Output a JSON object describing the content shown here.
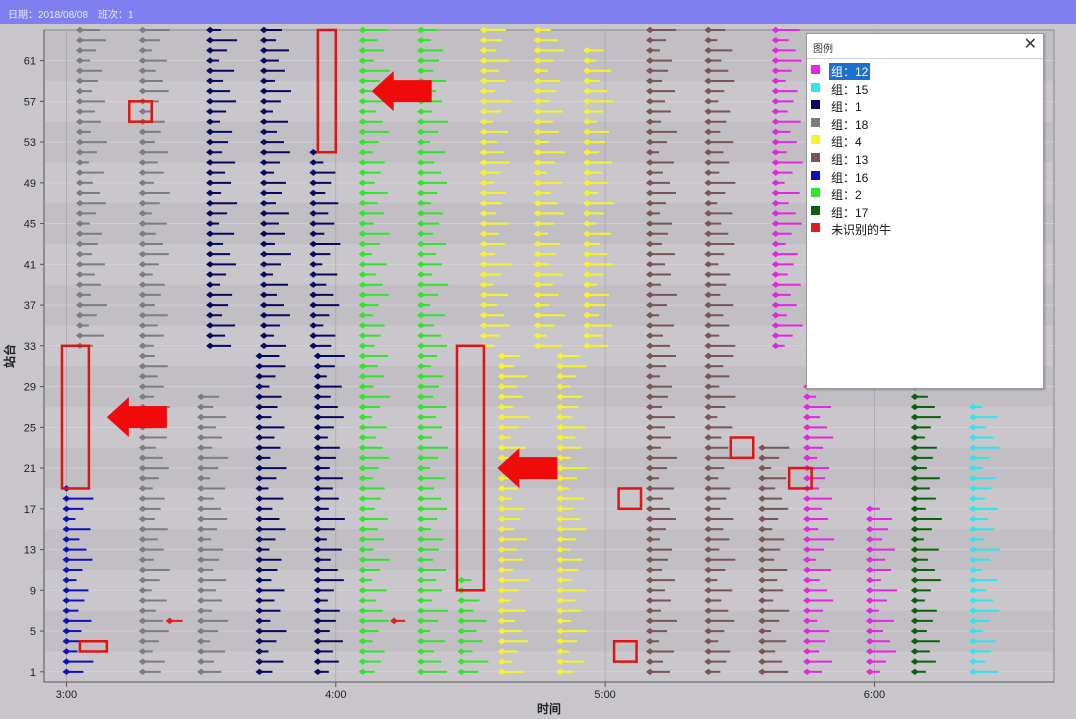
{
  "header": {
    "date_label": "日期：2018/08/08",
    "shift_label": "班次：1"
  },
  "legend": {
    "title": "图例",
    "close_icon": "close-icon",
    "selected_index": 0,
    "items": [
      {
        "label": "组：12",
        "color": "#e426e0"
      },
      {
        "label": "组：15",
        "color": "#33e5e8"
      },
      {
        "label": "组：1",
        "color": "#08085f"
      },
      {
        "label": "组：18",
        "color": "#7d7d7d"
      },
      {
        "label": "组：4",
        "color": "#f4f42a"
      },
      {
        "label": "组：13",
        "color": "#765656"
      },
      {
        "label": "组：16",
        "color": "#1010b8"
      },
      {
        "label": "组：2",
        "color": "#34e230"
      },
      {
        "label": "组：17",
        "color": "#0d6010"
      },
      {
        "label": "未识别的牛",
        "color": "#e21b1b"
      }
    ]
  },
  "chart_data": {
    "type": "scatter",
    "xlabel": "时间",
    "ylabel": "站台",
    "x_ticks": [
      "3:00",
      "4:00",
      "5:00",
      "6:00"
    ],
    "y_ticks": [
      1,
      5,
      9,
      13,
      17,
      21,
      25,
      29,
      33,
      37,
      41,
      45,
      49,
      53,
      57,
      61
    ],
    "xlim": [
      "2:55",
      "6:40"
    ],
    "ylim": [
      0,
      64
    ],
    "grid": true,
    "legend_position": "top-right",
    "series": [
      {
        "name": "组：18",
        "color": "#7d7d7d",
        "stacks": [
          {
            "start": "3:03",
            "stations": [
              33,
              64
            ]
          },
          {
            "start": "3:17",
            "stations": [
              33,
              64
            ]
          },
          {
            "start": "3:17",
            "stations": [
              1,
              32
            ]
          },
          {
            "start": "3:30",
            "stations": [
              1,
              28
            ]
          }
        ]
      },
      {
        "name": "组：16",
        "color": "#1010b8",
        "stacks": [
          {
            "start": "3:00",
            "stations": [
              1,
              19
            ]
          }
        ]
      },
      {
        "name": "组：1",
        "color": "#08085f",
        "stacks": [
          {
            "start": "3:32",
            "stations": [
              33,
              64
            ]
          },
          {
            "start": "3:44",
            "stations": [
              33,
              64
            ]
          },
          {
            "start": "3:43",
            "stations": [
              1,
              32
            ]
          },
          {
            "start": "3:56",
            "stations": [
              1,
              32
            ]
          },
          {
            "start": "3:55",
            "stations": [
              33,
              52
            ]
          }
        ]
      },
      {
        "name": "组：2",
        "color": "#34e230",
        "stacks": [
          {
            "start": "4:06",
            "stations": [
              1,
              64
            ]
          },
          {
            "start": "4:19",
            "stations": [
              1,
              64
            ]
          },
          {
            "start": "4:28",
            "stations": [
              1,
              10
            ]
          }
        ]
      },
      {
        "name": "组：4",
        "color": "#f4f42a",
        "stacks": [
          {
            "start": "4:33",
            "stations": [
              33,
              64
            ]
          },
          {
            "start": "4:45",
            "stations": [
              33,
              64
            ]
          },
          {
            "start": "4:56",
            "stations": [
              33,
              62
            ]
          },
          {
            "start": "4:37",
            "stations": [
              1,
              32
            ]
          },
          {
            "start": "4:50",
            "stations": [
              1,
              32
            ]
          }
        ]
      },
      {
        "name": "组：13",
        "color": "#765656",
        "stacks": [
          {
            "start": "5:10",
            "stations": [
              1,
              64
            ]
          },
          {
            "start": "5:23",
            "stations": [
              32,
              64
            ]
          },
          {
            "start": "5:23",
            "stations": [
              1,
              32
            ]
          },
          {
            "start": "5:35",
            "stations": [
              1,
              23
            ]
          }
        ]
      },
      {
        "name": "组：12",
        "color": "#e426e0",
        "stacks": [
          {
            "start": "5:38",
            "stations": [
              33,
              64
            ]
          },
          {
            "start": "5:45",
            "stations": [
              1,
              29
            ]
          },
          {
            "start": "5:59",
            "stations": [
              1,
              17
            ]
          }
        ]
      },
      {
        "name": "组：17",
        "color": "#0d6010",
        "stacks": [
          {
            "start": "6:09",
            "stations": [
              1,
              29
            ]
          }
        ]
      },
      {
        "name": "组：15",
        "color": "#33e5e8",
        "stacks": [
          {
            "start": "6:22",
            "stations": [
              1,
              27
            ]
          }
        ]
      },
      {
        "name": "未识别的牛",
        "color": "#e21b1b",
        "stacks": [
          {
            "start": "3:23",
            "stations": [
              6,
              6
            ]
          },
          {
            "start": "4:13",
            "stations": [
              6,
              6
            ]
          }
        ]
      }
    ],
    "annotations": [
      {
        "type": "box",
        "x": [
          "3:56",
          "4:00"
        ],
        "y": [
          52,
          64
        ]
      },
      {
        "type": "arrow-left",
        "x": "4:08",
        "y": 58
      },
      {
        "type": "box",
        "x": [
          "3:14",
          "3:19"
        ],
        "y": [
          55,
          57
        ]
      },
      {
        "type": "box",
        "x": [
          "2:59",
          "3:05"
        ],
        "y": [
          19,
          33
        ]
      },
      {
        "type": "arrow-left",
        "x": "3:09",
        "y": 26
      },
      {
        "type": "box",
        "x": [
          "4:27",
          "4:33"
        ],
        "y": [
          9,
          33
        ]
      },
      {
        "type": "arrow-left",
        "x": "4:36",
        "y": 21
      },
      {
        "type": "box",
        "x": [
          "5:03",
          "5:08"
        ],
        "y": [
          17,
          19
        ]
      },
      {
        "type": "box",
        "x": [
          "5:28",
          "5:33"
        ],
        "y": [
          22,
          24
        ]
      },
      {
        "type": "box",
        "x": [
          "5:41",
          "5:46"
        ],
        "y": [
          19,
          21
        ]
      },
      {
        "type": "box",
        "x": [
          "5:02",
          "5:07"
        ],
        "y": [
          2,
          4
        ]
      },
      {
        "type": "box",
        "x": [
          "3:03",
          "3:09"
        ],
        "y": [
          3,
          4
        ]
      }
    ]
  }
}
